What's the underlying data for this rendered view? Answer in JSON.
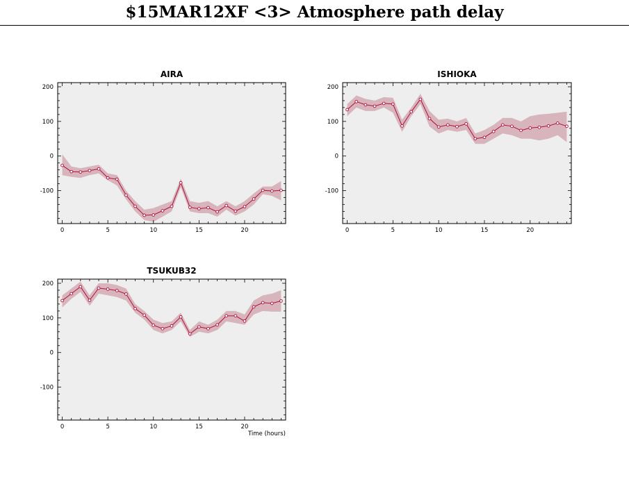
{
  "page": {
    "title": "$15MAR12XF <3>  Atmosphere path delay"
  },
  "colors": {
    "panel_bg": "#eeeeee",
    "band": "#d8b4bc",
    "line": "#b0103a"
  },
  "chart_data": [
    {
      "type": "line",
      "title": "AIRA",
      "xlabel": "",
      "ylabel": "",
      "xlim": [
        -0.5,
        24.5
      ],
      "ylim": [
        -195,
        212
      ],
      "x_ticks": [
        0,
        5,
        10,
        15,
        20
      ],
      "y_ticks": [
        200,
        100,
        0,
        -100
      ],
      "x": [
        0,
        1,
        2,
        3,
        4,
        5,
        6,
        7,
        8,
        9,
        10,
        11,
        12,
        13,
        14,
        15,
        16,
        17,
        18,
        19,
        20,
        21,
        22,
        23,
        24
      ],
      "series": [
        {
          "values": [
            -27,
            -45,
            -46,
            -42,
            -37,
            -63,
            -67,
            -113,
            -145,
            -171,
            -170,
            -158,
            -145,
            -77,
            -148,
            -152,
            -149,
            -161,
            -143,
            -159,
            -146,
            -124,
            -99,
            -101,
            -99
          ],
          "lower": [
            -55,
            -60,
            -63,
            -55,
            -50,
            -70,
            -85,
            -125,
            -160,
            -185,
            -190,
            -175,
            -160,
            -90,
            -160,
            -165,
            -165,
            -175,
            -155,
            -172,
            -160,
            -140,
            -110,
            -115,
            -128
          ],
          "upper": [
            5,
            -30,
            -35,
            -30,
            -25,
            -50,
            -55,
            -100,
            -130,
            -155,
            -150,
            -140,
            -130,
            -65,
            -130,
            -135,
            -130,
            -145,
            -130,
            -145,
            -130,
            -108,
            -88,
            -88,
            -72
          ]
        }
      ]
    },
    {
      "type": "line",
      "title": "ISHIOKA",
      "xlabel": "",
      "ylabel": "",
      "xlim": [
        -0.5,
        24.5
      ],
      "ylim": [
        -195,
        212
      ],
      "x_ticks": [
        0,
        5,
        10,
        15,
        20
      ],
      "y_ticks": [
        200,
        100,
        0,
        -100
      ],
      "x": [
        0,
        1,
        2,
        3,
        4,
        5,
        6,
        7,
        8,
        9,
        10,
        11,
        12,
        13,
        14,
        15,
        16,
        17,
        18,
        19,
        20,
        21,
        22,
        23,
        24
      ],
      "series": [
        {
          "values": [
            134,
            157,
            148,
            144,
            152,
            150,
            87,
            128,
            164,
            108,
            84,
            90,
            85,
            93,
            50,
            54,
            71,
            90,
            86,
            74,
            81,
            83,
            87,
            95,
            86
          ],
          "lower": [
            115,
            140,
            130,
            130,
            140,
            125,
            70,
            115,
            150,
            85,
            65,
            75,
            70,
            75,
            35,
            35,
            50,
            65,
            60,
            50,
            50,
            45,
            50,
            60,
            40
          ],
          "upper": [
            150,
            175,
            165,
            160,
            170,
            168,
            105,
            140,
            180,
            130,
            105,
            108,
            100,
            110,
            65,
            75,
            90,
            110,
            110,
            100,
            115,
            120,
            122,
            125,
            128
          ]
        }
      ]
    },
    {
      "type": "line",
      "title": "TSUKUB32",
      "xlabel": "Time (hours)",
      "ylabel": "",
      "xlim": [
        -0.5,
        24.5
      ],
      "ylim": [
        -195,
        212
      ],
      "x_ticks": [
        0,
        5,
        10,
        15,
        20
      ],
      "y_ticks": [
        200,
        100,
        0,
        -100
      ],
      "x": [
        0,
        1,
        2,
        3,
        4,
        5,
        6,
        7,
        8,
        9,
        10,
        11,
        12,
        13,
        14,
        15,
        16,
        17,
        18,
        19,
        20,
        21,
        22,
        23,
        24
      ],
      "series": [
        {
          "values": [
            150,
            170,
            190,
            151,
            186,
            183,
            179,
            169,
            127,
            108,
            79,
            69,
            77,
            103,
            54,
            74,
            69,
            80,
            106,
            106,
            91,
            132,
            144,
            142,
            149
          ],
          "lower": [
            130,
            155,
            175,
            135,
            170,
            165,
            160,
            150,
            115,
            95,
            65,
            55,
            65,
            90,
            45,
            60,
            55,
            65,
            90,
            85,
            80,
            110,
            120,
            118,
            118
          ],
          "upper": [
            165,
            185,
            205,
            165,
            200,
            200,
            195,
            185,
            140,
            120,
            95,
            85,
            90,
            115,
            65,
            90,
            80,
            95,
            120,
            120,
            110,
            150,
            165,
            170,
            180
          ]
        }
      ]
    }
  ]
}
